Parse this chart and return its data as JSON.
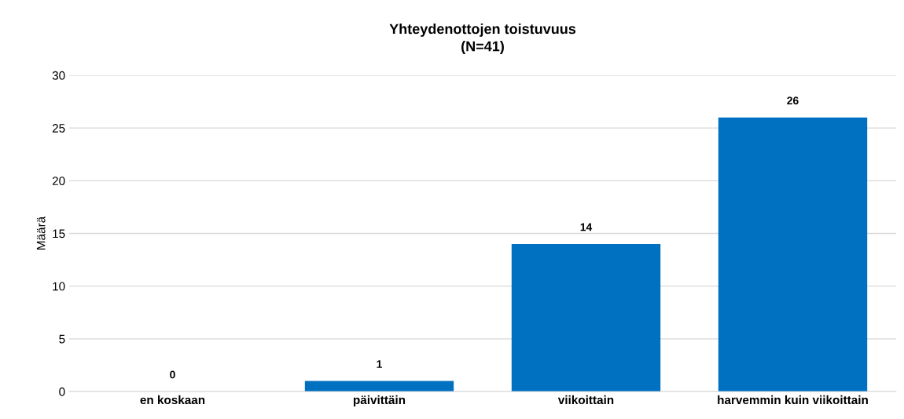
{
  "chart_data": {
    "type": "bar",
    "title": "Yhteydenottojen toistuvuus\n(N=41)",
    "ylabel": "Määrä",
    "categories": [
      "en koskaan",
      "päivittäin",
      "viikoittain",
      "harvemmin kuin viikoittain"
    ],
    "values": [
      0,
      1,
      14,
      26
    ],
    "color": "#0070c0",
    "ylim": [
      0,
      30
    ],
    "yticks": [
      0,
      5,
      10,
      15,
      20,
      25,
      30
    ],
    "grid": "y",
    "data_labels": true
  }
}
